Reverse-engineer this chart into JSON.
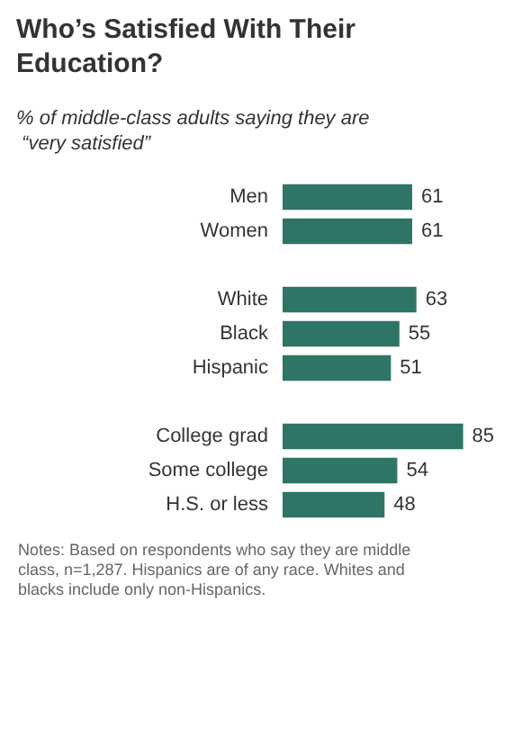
{
  "chart_data": {
    "type": "bar",
    "orientation": "horizontal",
    "title": "Who’s Satisfied With Their Education?",
    "subtitle": "% of middle-class adults saying they are “very satisfied”",
    "categories": [
      "Men",
      "Women",
      null,
      "White",
      "Black",
      "Hispanic",
      null,
      "College grad",
      "Some college",
      "H.S. or less"
    ],
    "values": [
      61,
      61,
      null,
      63,
      55,
      51,
      null,
      85,
      54,
      48
    ],
    "color": "#2e7566",
    "data_labels": true,
    "annotations": [
      "Notes: Based on respondents who say they are middle class, n=1,287. Hispanics are of any race. Whites and blacks include only non-Hispanics."
    ]
  }
}
